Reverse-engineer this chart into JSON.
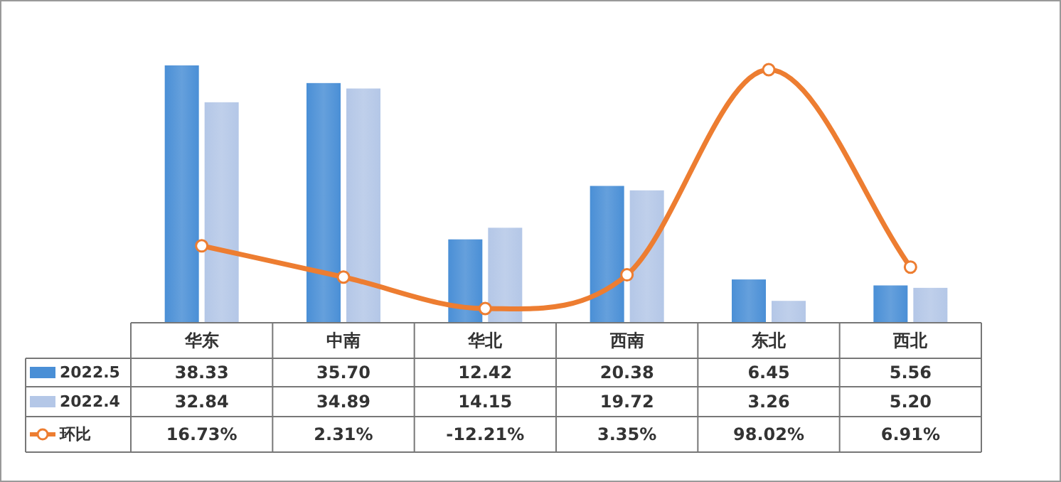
{
  "chart_data": {
    "type": "bar",
    "categories": [
      "华东",
      "中南",
      "华北",
      "西南",
      "东北",
      "西北"
    ],
    "legend": "left",
    "marker": "circle",
    "series": [
      {
        "name": "2022.5",
        "color": "#4a8fd6",
        "values": [
          38.33,
          35.7,
          12.42,
          20.38,
          6.45,
          5.56
        ],
        "value_labels": [
          "38.33",
          "35.70",
          "12.42",
          "20.38",
          "6.45",
          "5.56"
        ]
      },
      {
        "name": "2022.4",
        "color": "#b4c7e7",
        "values": [
          32.84,
          34.89,
          14.15,
          19.72,
          3.26,
          5.2
        ],
        "value_labels": [
          "32.84",
          "34.89",
          "14.15",
          "19.72",
          "3.26",
          "5.20"
        ]
      },
      {
        "name": "环比",
        "type": "line",
        "axis": "y2",
        "color": "#ed7d31",
        "values": [
          16.73,
          2.31,
          -12.21,
          3.35,
          98.02,
          6.91
        ],
        "value_labels": [
          "16.73%",
          "2.31%",
          "-12.21%",
          "3.35%",
          "98.02%",
          "6.91%"
        ]
      }
    ]
  }
}
